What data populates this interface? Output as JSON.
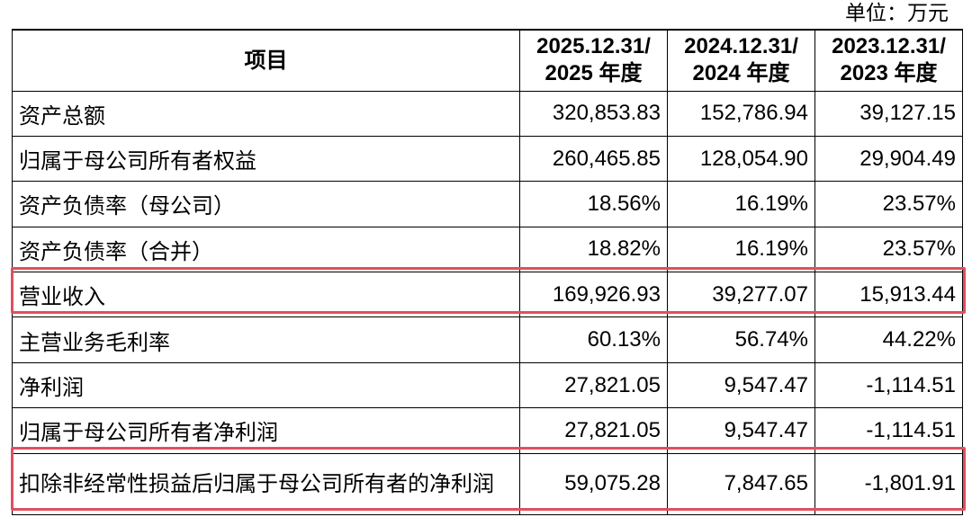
{
  "unit_label": "单位：万元",
  "header": {
    "item": "项目",
    "periods": [
      {
        "line1": "2025.12.31/",
        "line2": "2025 年度"
      },
      {
        "line1": "2024.12.31/",
        "line2": "2024 年度"
      },
      {
        "line1": "2023.12.31/",
        "line2": "2023 年度"
      }
    ]
  },
  "rows": [
    {
      "label": "资产总额",
      "values": [
        "320,853.83",
        "152,786.94",
        "39,127.15"
      ]
    },
    {
      "label": "归属于母公司所有者权益",
      "values": [
        "260,465.85",
        "128,054.90",
        "29,904.49"
      ]
    },
    {
      "label": "资产负债率（母公司）",
      "values": [
        "18.56%",
        "16.19%",
        "23.57%"
      ]
    },
    {
      "label": "资产负债率（合并）",
      "values": [
        "18.82%",
        "16.19%",
        "23.57%"
      ]
    },
    {
      "label": "营业收入",
      "values": [
        "169,926.93",
        "39,277.07",
        "15,913.44"
      ]
    },
    {
      "label": "主营业务毛利率",
      "values": [
        "60.13%",
        "56.74%",
        "44.22%"
      ]
    },
    {
      "label": "净利润",
      "values": [
        "27,821.05",
        "9,547.47",
        "-1,114.51"
      ]
    },
    {
      "label": "归属于母公司所有者净利润",
      "values": [
        "27,821.05",
        "9,547.47",
        "-1,114.51"
      ]
    },
    {
      "label": "扣除非经常性损益后归属于母公司所有者的净利润",
      "values": [
        "59,075.28",
        "7,847.65",
        "-1,801.91"
      ]
    }
  ],
  "highlight_color": "#e0505e"
}
